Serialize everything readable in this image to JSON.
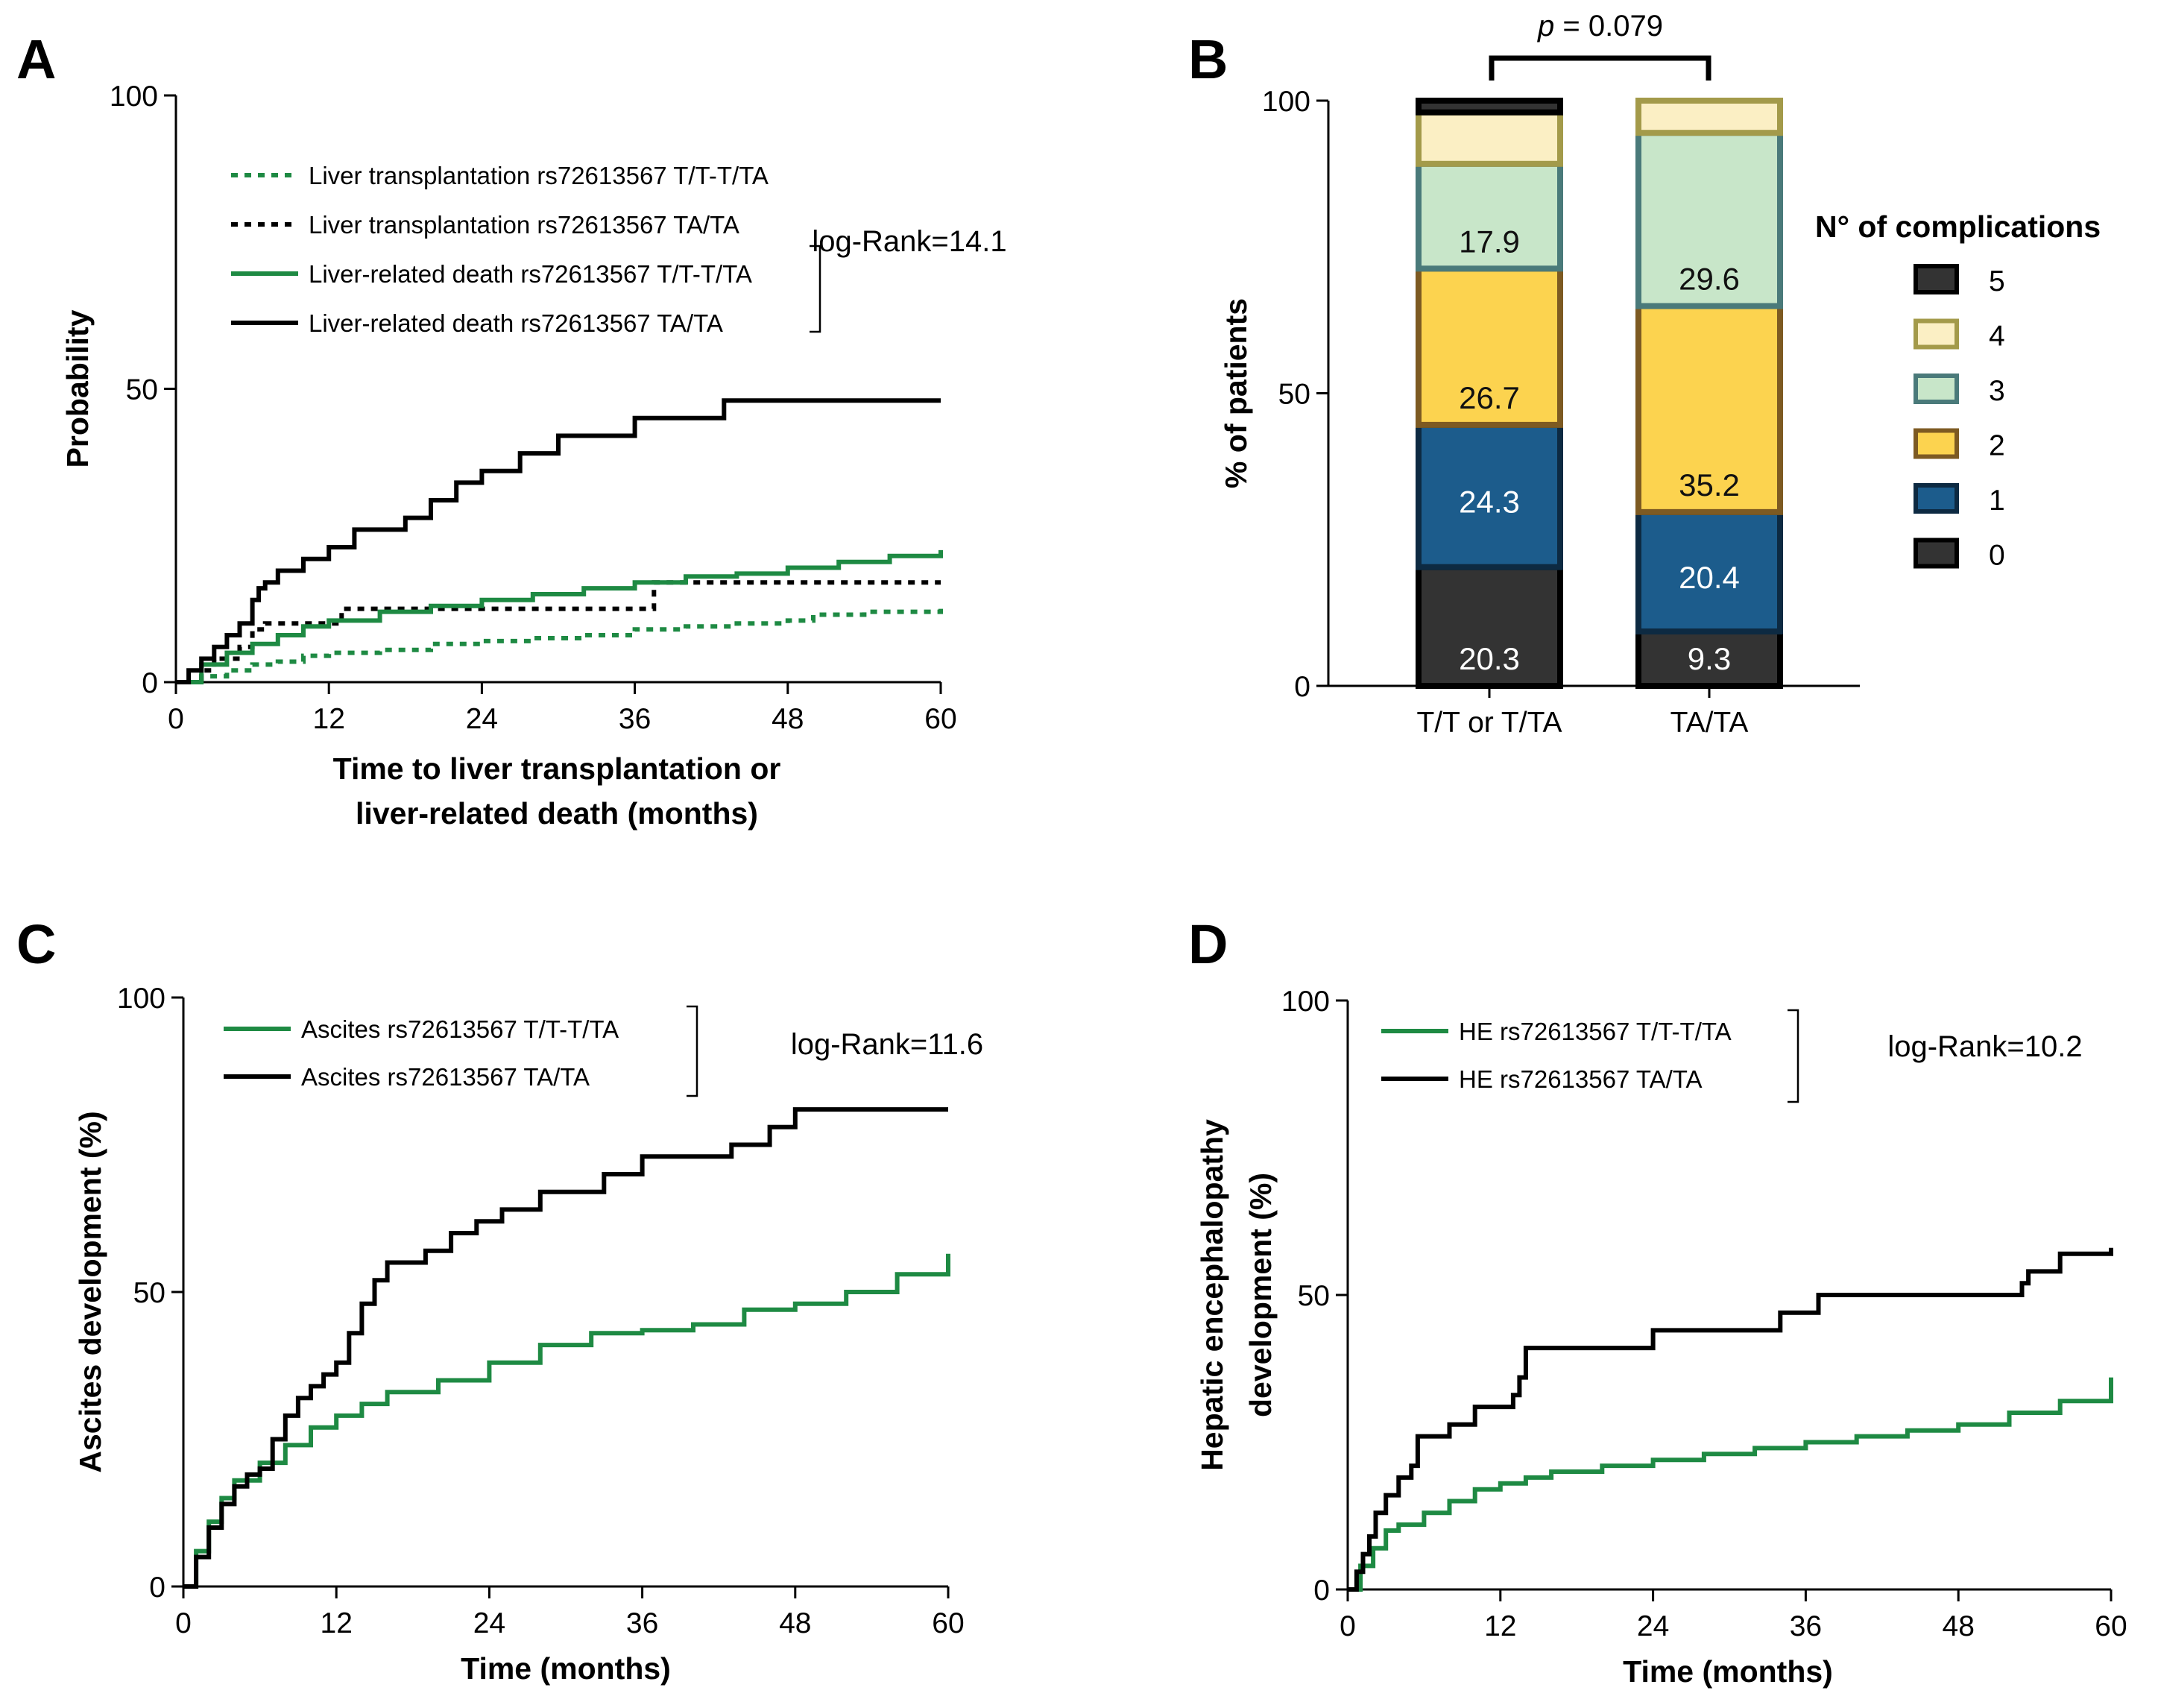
{
  "colors": {
    "green": "#1e8a43",
    "black": "#000000"
  },
  "chart_data": [
    {
      "panel": "A",
      "type": "line",
      "title": "",
      "xlabel": "Time to liver transplantation or liver-related death (months)",
      "xlabel_lines": [
        "Time to liver transplantation or",
        "liver-related death (months)"
      ],
      "ylabel": "Probability",
      "xlim": [
        0,
        60
      ],
      "ylim": [
        0,
        100
      ],
      "xticks": [
        "0",
        "12",
        "24",
        "36",
        "48",
        "60"
      ],
      "yticks": [
        "0",
        "50",
        "100"
      ],
      "stat": "log-Rank=14.1",
      "series": [
        {
          "name": "Liver transplantation rs72613567  T/T-T/TA",
          "color": "#1e8a43",
          "dashed": true,
          "points": [
            [
              0,
              0
            ],
            [
              2,
              1
            ],
            [
              4,
              2
            ],
            [
              6,
              3
            ],
            [
              8,
              3.5
            ],
            [
              10,
              4.5
            ],
            [
              12,
              5
            ],
            [
              16,
              5.5
            ],
            [
              20,
              6.5
            ],
            [
              24,
              7
            ],
            [
              28,
              7.5
            ],
            [
              32,
              8
            ],
            [
              36,
              9
            ],
            [
              40,
              9.5
            ],
            [
              44,
              10
            ],
            [
              48,
              10.5
            ],
            [
              50,
              11.5
            ],
            [
              54,
              12
            ],
            [
              58,
              12
            ],
            [
              60,
              12.5
            ]
          ]
        },
        {
          "name": "Liver transplantation rs72613567  TA/TA",
          "color": "#000000",
          "dashed": true,
          "points": [
            [
              0,
              0
            ],
            [
              2,
              2
            ],
            [
              3,
              4
            ],
            [
              5,
              6
            ],
            [
              6,
              9
            ],
            [
              7,
              10
            ],
            [
              12,
              10
            ],
            [
              13,
              12.5
            ],
            [
              37,
              12.5
            ],
            [
              37.5,
              17
            ],
            [
              60,
              17
            ]
          ]
        },
        {
          "name": "Liver-related death rs72613567  T/T-T/TA",
          "color": "#1e8a43",
          "dashed": false,
          "points": [
            [
              0,
              0
            ],
            [
              2,
              3
            ],
            [
              4,
              5
            ],
            [
              6,
              6.5
            ],
            [
              8,
              8
            ],
            [
              10,
              9.5
            ],
            [
              12,
              10.5
            ],
            [
              16,
              12
            ],
            [
              20,
              13
            ],
            [
              24,
              14
            ],
            [
              28,
              15
            ],
            [
              32,
              16
            ],
            [
              36,
              17
            ],
            [
              40,
              18
            ],
            [
              44,
              18.5
            ],
            [
              48,
              19.5
            ],
            [
              52,
              20.5
            ],
            [
              56,
              21.5
            ],
            [
              60,
              22.5
            ]
          ]
        },
        {
          "name": "Liver-related death rs72613567  TA/TA",
          "color": "#000000",
          "dashed": false,
          "points": [
            [
              0,
              0
            ],
            [
              1,
              2
            ],
            [
              2,
              4
            ],
            [
              3,
              6
            ],
            [
              4,
              8
            ],
            [
              5,
              10
            ],
            [
              6,
              14
            ],
            [
              6.5,
              16
            ],
            [
              7,
              17
            ],
            [
              8,
              19
            ],
            [
              10,
              21
            ],
            [
              12,
              23
            ],
            [
              14,
              26
            ],
            [
              18,
              28
            ],
            [
              20,
              31
            ],
            [
              22,
              34
            ],
            [
              24,
              36
            ],
            [
              27,
              39
            ],
            [
              30,
              42
            ],
            [
              36,
              45
            ],
            [
              43,
              48
            ],
            [
              60,
              48
            ]
          ]
        }
      ]
    },
    {
      "panel": "B",
      "type": "bar",
      "stacked": true,
      "title": "",
      "xlabel": "",
      "ylabel": "% of patients",
      "ylim": [
        0,
        100
      ],
      "yticks": [
        "0",
        "50",
        "100"
      ],
      "categories": [
        "T/T or T/TA",
        "TA/TA"
      ],
      "significance": {
        "prefix": "p",
        "text": " = 0.079"
      },
      "legend_title": "N° of complications",
      "series": [
        {
          "name": "0",
          "fill": "#333333",
          "stroke": "#000000",
          "values": [
            20.3,
            9.3
          ],
          "labels": [
            "20.3",
            "9.3"
          ],
          "label_color": "#ffffff"
        },
        {
          "name": "1",
          "fill": "#1c5c8c",
          "stroke": "#0d2a42",
          "values": [
            24.3,
            20.4
          ],
          "labels": [
            "24.3",
            "20.4"
          ],
          "label_color": "#ffffff"
        },
        {
          "name": "2",
          "fill": "#fcd34f",
          "stroke": "#7d5a22",
          "values": [
            26.7,
            35.2
          ],
          "labels": [
            "26.7",
            "35.2"
          ],
          "label_color": "#111111"
        },
        {
          "name": "3",
          "fill": "#c8e6c9",
          "stroke": "#4a7a7a",
          "values": [
            17.9,
            29.6
          ],
          "labels": [
            "17.9",
            "29.6"
          ],
          "label_color": "#111111"
        },
        {
          "name": "4",
          "fill": "#fbefc4",
          "stroke": "#a39a4a",
          "values": [
            8.8,
            5.5
          ],
          "labels": [
            "",
            ""
          ],
          "label_color": "#111111"
        },
        {
          "name": "5",
          "fill": "#333333",
          "stroke": "#000000",
          "values": [
            2.0,
            0
          ],
          "labels": [
            "",
            ""
          ],
          "label_color": "#ffffff"
        }
      ]
    },
    {
      "panel": "C",
      "type": "line",
      "title": "",
      "xlabel": "Time (months)",
      "ylabel": "Ascites development (%)",
      "xlim": [
        0,
        60
      ],
      "ylim": [
        0,
        100
      ],
      "xticks": [
        "0",
        "12",
        "24",
        "36",
        "48",
        "60"
      ],
      "yticks": [
        "0",
        "50",
        "100"
      ],
      "stat": "log-Rank=11.6",
      "series": [
        {
          "name": "Ascites rs72613567  T/T-T/TA",
          "color": "#1e8a43",
          "dashed": false,
          "points": [
            [
              0,
              0
            ],
            [
              1,
              6
            ],
            [
              2,
              11
            ],
            [
              3,
              15
            ],
            [
              4,
              18
            ],
            [
              6,
              21
            ],
            [
              8,
              24
            ],
            [
              10,
              27
            ],
            [
              12,
              29
            ],
            [
              14,
              31
            ],
            [
              16,
              33
            ],
            [
              20,
              35
            ],
            [
              24,
              38
            ],
            [
              28,
              41
            ],
            [
              32,
              43
            ],
            [
              36,
              43.5
            ],
            [
              40,
              44.5
            ],
            [
              44,
              47
            ],
            [
              48,
              48
            ],
            [
              52,
              50
            ],
            [
              56,
              53
            ],
            [
              60,
              56.5
            ]
          ]
        },
        {
          "name": "Ascites rs72613567  TA/TA",
          "color": "#000000",
          "dashed": false,
          "points": [
            [
              0,
              0
            ],
            [
              1,
              5
            ],
            [
              2,
              10
            ],
            [
              3,
              14
            ],
            [
              4,
              17
            ],
            [
              5,
              19
            ],
            [
              6,
              20
            ],
            [
              7,
              25
            ],
            [
              8,
              29
            ],
            [
              9,
              32
            ],
            [
              10,
              34
            ],
            [
              11,
              36
            ],
            [
              12,
              38
            ],
            [
              13,
              43
            ],
            [
              14,
              48
            ],
            [
              15,
              52
            ],
            [
              16,
              55
            ],
            [
              19,
              57
            ],
            [
              21,
              60
            ],
            [
              23,
              62
            ],
            [
              25,
              64
            ],
            [
              28,
              67
            ],
            [
              33,
              70
            ],
            [
              36,
              73
            ],
            [
              43,
              75
            ],
            [
              46,
              78
            ],
            [
              48,
              81
            ],
            [
              60,
              81
            ]
          ]
        }
      ]
    },
    {
      "panel": "D",
      "type": "line",
      "title": "",
      "xlabel": "Time (months)",
      "ylabel": "Hepatic encephalopathy development (%)",
      "ylabel_lines": [
        "Hepatic encephalopathy",
        "development (%)"
      ],
      "xlim": [
        0,
        60
      ],
      "ylim": [
        0,
        100
      ],
      "xticks": [
        "0",
        "12",
        "24",
        "36",
        "48",
        "60"
      ],
      "yticks": [
        "0",
        "50",
        "100"
      ],
      "stat": "log-Rank=10.2",
      "series": [
        {
          "name": "HE rs72613567  T/T-T/TA",
          "color": "#1e8a43",
          "dashed": false,
          "points": [
            [
              0,
              0
            ],
            [
              1,
              4
            ],
            [
              2,
              7
            ],
            [
              3,
              10
            ],
            [
              4,
              11
            ],
            [
              6,
              13
            ],
            [
              8,
              15
            ],
            [
              10,
              17
            ],
            [
              12,
              18
            ],
            [
              14,
              19
            ],
            [
              16,
              20
            ],
            [
              20,
              21
            ],
            [
              24,
              22
            ],
            [
              28,
              23
            ],
            [
              32,
              24
            ],
            [
              36,
              25
            ],
            [
              40,
              26
            ],
            [
              44,
              27
            ],
            [
              48,
              28
            ],
            [
              52,
              30
            ],
            [
              56,
              32
            ],
            [
              60,
              36
            ]
          ]
        },
        {
          "name": "HE rs72613567  TA/TA",
          "color": "#000000",
          "dashed": false,
          "points": [
            [
              0,
              0
            ],
            [
              0.7,
              3
            ],
            [
              1.2,
              6
            ],
            [
              1.7,
              9
            ],
            [
              2.2,
              13
            ],
            [
              3,
              16
            ],
            [
              4,
              19
            ],
            [
              5,
              21
            ],
            [
              5.5,
              26
            ],
            [
              8,
              28
            ],
            [
              10,
              31
            ],
            [
              13,
              33
            ],
            [
              13.5,
              36
            ],
            [
              14,
              41
            ],
            [
              24,
              44
            ],
            [
              34,
              47
            ],
            [
              37,
              50
            ],
            [
              53,
              52
            ],
            [
              53.5,
              54
            ],
            [
              56,
              57
            ],
            [
              60,
              58
            ]
          ]
        }
      ]
    }
  ]
}
